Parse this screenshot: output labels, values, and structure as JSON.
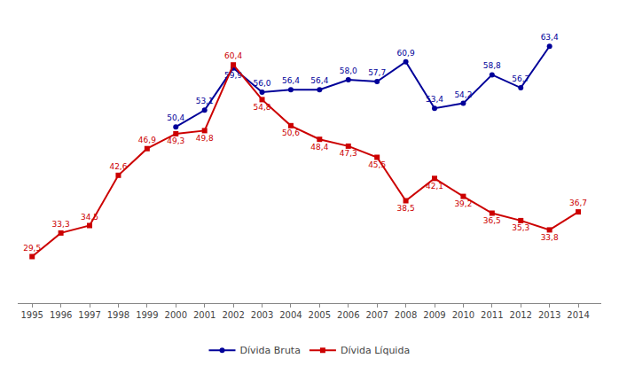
{
  "chart_data": {
    "type": "line",
    "x": [
      1995,
      1996,
      1997,
      1998,
      1999,
      2000,
      2001,
      2002,
      2003,
      2004,
      2005,
      2006,
      2007,
      2008,
      2009,
      2010,
      2011,
      2012,
      2013,
      2014
    ],
    "series": [
      {
        "name": "Dívida Bruta",
        "color": "#000099",
        "marker": "circle",
        "values": [
          null,
          null,
          null,
          null,
          null,
          50.4,
          53.1,
          59.9,
          56.0,
          56.4,
          56.4,
          58.0,
          57.7,
          60.9,
          53.4,
          54.2,
          58.8,
          56.7,
          63.4,
          null
        ],
        "value_labels": [
          null,
          null,
          null,
          null,
          null,
          "50,4",
          "53,1",
          "59,9",
          "56,0",
          "56,4",
          "56,4",
          "58,0",
          "57,7",
          "60,9",
          "53,4",
          "54,2",
          "58,8",
          "56,7",
          "63,4",
          null
        ]
      },
      {
        "name": "Dívida Líquida",
        "color": "#CC0000",
        "marker": "square",
        "values": [
          29.5,
          33.3,
          34.5,
          42.6,
          46.9,
          49.3,
          49.8,
          60.4,
          54.8,
          50.6,
          48.4,
          47.3,
          45.5,
          38.5,
          42.1,
          39.2,
          36.5,
          35.3,
          33.8,
          36.7
        ],
        "value_labels": [
          "29,5",
          "33,3",
          "34,5",
          "42,6",
          "46,9",
          "49,3",
          "49,8",
          "60,4",
          "54,8",
          "50,6",
          "48,4",
          "47,3",
          "45,5",
          "38,5",
          "42,1",
          "39,2",
          "36,5",
          "35,3",
          "33,8",
          "36,7"
        ]
      }
    ],
    "xlim": [
      1994.5,
      2014.8
    ],
    "xticks": [
      1995,
      1996,
      1997,
      1998,
      1999,
      2000,
      2001,
      2002,
      2003,
      2004,
      2005,
      2006,
      2007,
      2008,
      2009,
      2010,
      2011,
      2012,
      2013,
      2014
    ],
    "ylim": [
      22,
      68
    ],
    "tick_labels": "x",
    "grid": false,
    "legend": "bottom",
    "data_labels": true
  }
}
